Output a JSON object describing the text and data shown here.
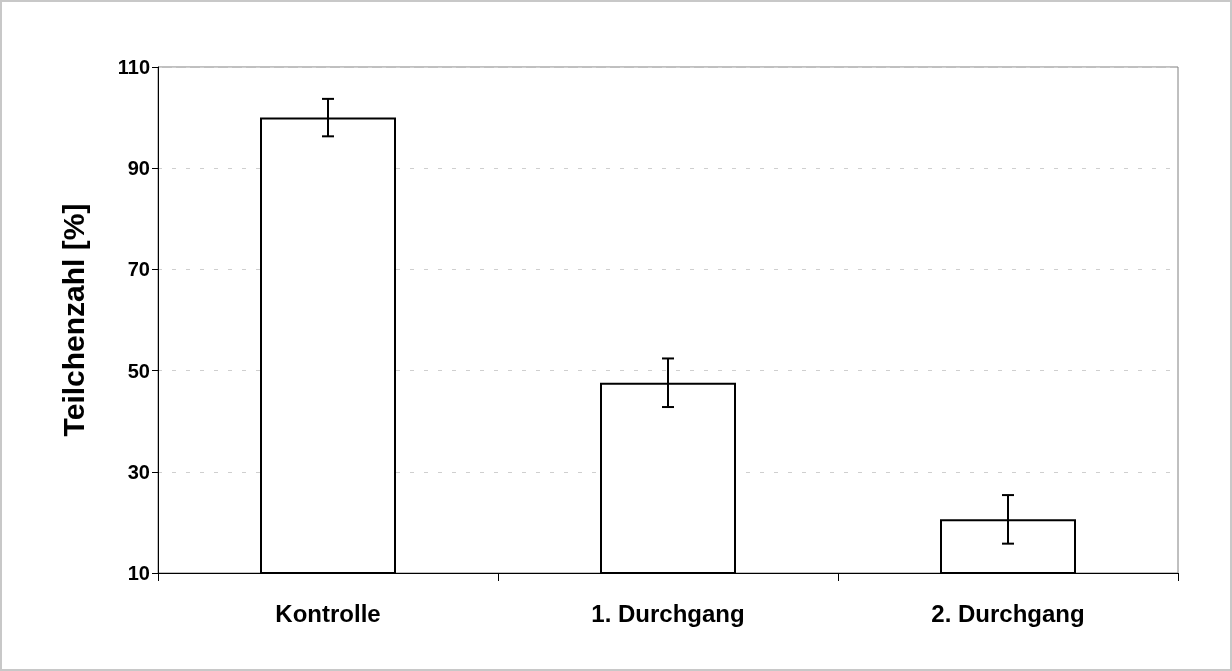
{
  "chart_data": {
    "type": "bar",
    "ylabel": "Teilchenzahl [%]",
    "categories": [
      "Kontrolle",
      "1. Durchgang",
      "2. Durchgang"
    ],
    "values": [
      100,
      47.6,
      20.6
    ],
    "errors": [
      3.7,
      4.8,
      4.8
    ],
    "color": "#ffffff",
    "ylim": [
      10,
      110
    ],
    "yticks": [
      10,
      30,
      50,
      70,
      90,
      110
    ],
    "grid": "y"
  }
}
